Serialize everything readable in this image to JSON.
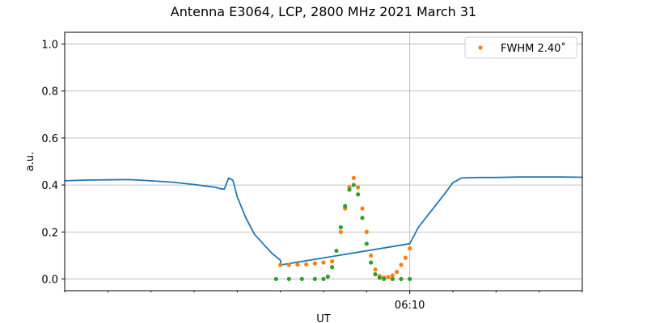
{
  "chart_data": {
    "type": "line",
    "title": "Antenna E3064, LCP, 2800 MHz 2021 March 31",
    "xlabel": "UT",
    "ylabel": "a.u.",
    "x_unit": "minutes",
    "xlim": [
      0,
      12
    ],
    "ylim": [
      -0.05,
      1.05
    ],
    "yticks": [
      0.0,
      0.2,
      0.4,
      0.6,
      0.8,
      1.0
    ],
    "ytick_labels": [
      "0.0",
      "0.2",
      "0.4",
      "0.6",
      "0.8",
      "1.0"
    ],
    "xticks": [
      {
        "x": 8,
        "label": "06:10"
      }
    ],
    "x_minor_ticks": [
      0,
      1,
      2,
      3,
      4,
      5,
      6,
      7,
      9,
      10,
      11,
      12
    ],
    "vline_x": 8,
    "grid": "y-major",
    "legend": {
      "position": "top-right",
      "entries": [
        {
          "label": "FWHM 2.40$^\\circ$",
          "display": "FWHM 2.40˚",
          "color": "#ff7f0e",
          "marker": "circle"
        }
      ]
    },
    "series": [
      {
        "kind": "line",
        "color": "#1f77b4",
        "x": [
          0,
          0.5,
          1.0,
          1.5,
          2.0,
          2.5,
          3.0,
          3.5,
          3.6,
          3.7,
          3.8,
          3.9,
          4.0,
          4.2,
          4.4,
          4.6,
          4.8,
          5.0,
          5.02,
          8.0,
          8.2,
          8.5,
          8.8,
          9.0,
          9.2,
          9.6,
          10.0,
          10.5,
          11.0,
          11.5,
          12.0
        ],
        "y": [
          0.418,
          0.421,
          0.422,
          0.423,
          0.418,
          0.412,
          0.402,
          0.39,
          0.385,
          0.382,
          0.43,
          0.42,
          0.35,
          0.26,
          0.19,
          0.15,
          0.11,
          0.08,
          0.06,
          0.15,
          0.22,
          0.29,
          0.36,
          0.41,
          0.43,
          0.432,
          0.432,
          0.434,
          0.434,
          0.434,
          0.433
        ]
      },
      {
        "kind": "scatter",
        "color": "#ff7f0e",
        "x": [
          5.0,
          5.2,
          5.4,
          5.6,
          5.8,
          6.0,
          6.2,
          6.4,
          6.5,
          6.6,
          6.7,
          6.8,
          6.9,
          7.0,
          7.1,
          7.2,
          7.3,
          7.4,
          7.5,
          7.6,
          7.7,
          7.8,
          7.9,
          8.0
        ],
        "y": [
          0.06,
          0.06,
          0.061,
          0.062,
          0.066,
          0.07,
          0.075,
          0.2,
          0.3,
          0.39,
          0.43,
          0.39,
          0.3,
          0.2,
          0.1,
          0.04,
          0.012,
          0.006,
          0.008,
          0.015,
          0.03,
          0.06,
          0.09,
          0.13
        ]
      },
      {
        "kind": "scatter",
        "color": "#2ca02c",
        "x": [
          4.9,
          5.2,
          5.5,
          5.8,
          6.0,
          6.1,
          6.2,
          6.3,
          6.4,
          6.5,
          6.6,
          6.7,
          6.8,
          6.9,
          7.0,
          7.1,
          7.2,
          7.3,
          7.4,
          7.6,
          7.8,
          8.0
        ],
        "y": [
          0.0,
          0.0,
          0.0,
          0.0,
          0.0,
          0.01,
          0.05,
          0.12,
          0.22,
          0.31,
          0.38,
          0.4,
          0.36,
          0.26,
          0.15,
          0.07,
          0.02,
          0.005,
          0.0,
          0.0,
          0.0,
          0.0
        ]
      }
    ]
  }
}
